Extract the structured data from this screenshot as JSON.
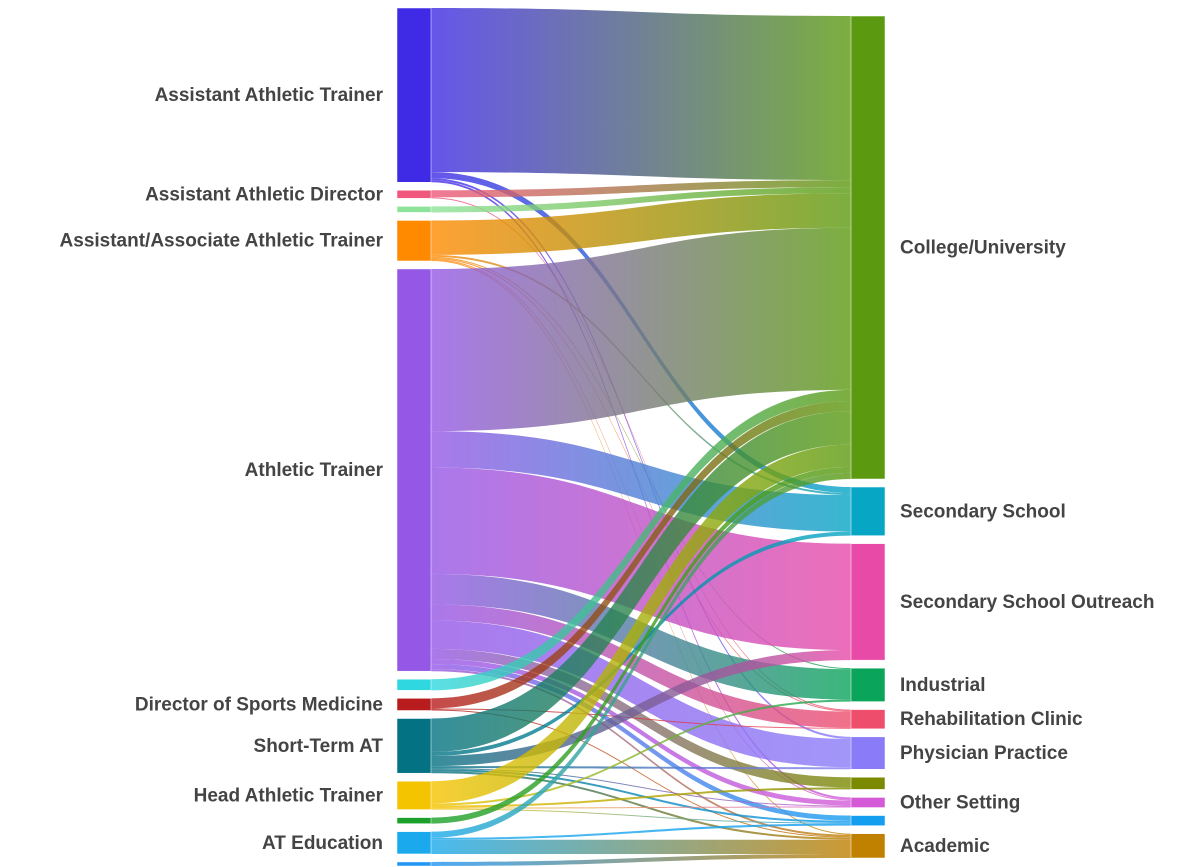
{
  "chart_data": {
    "type": "sankey",
    "nodes": [
      {
        "label": "Assistant Athletic Trainer",
        "color": "#3f2be6"
      },
      {
        "label": "Assistant Athletic Director",
        "color": "#f0577c"
      },
      {
        "label": null,
        "color": "#8ee39a"
      },
      {
        "label": "Assistant/Associate Athletic Trainer",
        "color": "#ff8a00"
      },
      {
        "label": "Athletic Trainer",
        "color": "#9557e6"
      },
      {
        "label": null,
        "color": "#2fd8e0"
      },
      {
        "label": "Director of Sports Medicine",
        "color": "#b81c1c"
      },
      {
        "label": "Short-Term AT",
        "color": "#037282"
      },
      {
        "label": "Head Athletic Trainer",
        "color": "#f5c400"
      },
      {
        "label": null,
        "color": "#1ba02a"
      },
      {
        "label": "AT Education",
        "color": "#1aa9ec"
      },
      {
        "label": null,
        "color": "#2196f3"
      },
      {
        "label": "College/University",
        "color": "#5b9a10"
      },
      {
        "label": "Secondary School",
        "color": "#06a6c4"
      },
      {
        "label": "Secondary School Outreach",
        "color": "#e84aa8"
      },
      {
        "label": "Industrial",
        "color": "#0aa55a"
      },
      {
        "label": "Rehabilitation Clinic",
        "color": "#ee4d6c"
      },
      {
        "label": "Physician Practice",
        "color": "#8a7cf8"
      },
      {
        "label": null,
        "color": "#7b8a00"
      },
      {
        "label": "Other Setting",
        "color": "#d45ad8"
      },
      {
        "label": null,
        "color": "#149ef0"
      },
      {
        "label": "Academic",
        "color": "#c08000"
      }
    ],
    "links": [
      {
        "source": 0,
        "target": 12,
        "value": 162
      },
      {
        "source": 0,
        "target": 13,
        "value": 6
      },
      {
        "source": 0,
        "target": 17,
        "value": 2
      },
      {
        "source": 0,
        "target": 19,
        "value": 2
      },
      {
        "source": 1,
        "target": 12,
        "value": 7
      },
      {
        "source": 1,
        "target": 16,
        "value": 1
      },
      {
        "source": 2,
        "target": 12,
        "value": 6
      },
      {
        "source": 3,
        "target": 12,
        "value": 34
      },
      {
        "source": 3,
        "target": 13,
        "value": 2
      },
      {
        "source": 3,
        "target": 15,
        "value": 1
      },
      {
        "source": 3,
        "target": 16,
        "value": 1
      },
      {
        "source": 3,
        "target": 19,
        "value": 1
      },
      {
        "source": 3,
        "target": 21,
        "value": 1
      },
      {
        "source": 4,
        "target": 12,
        "value": 160
      },
      {
        "source": 4,
        "target": 13,
        "value": 36
      },
      {
        "source": 4,
        "target": 14,
        "value": 105
      },
      {
        "source": 4,
        "target": 15,
        "value": 30
      },
      {
        "source": 4,
        "target": 16,
        "value": 16
      },
      {
        "source": 4,
        "target": 17,
        "value": 28
      },
      {
        "source": 4,
        "target": 18,
        "value": 10
      },
      {
        "source": 4,
        "target": 19,
        "value": 5
      },
      {
        "source": 4,
        "target": 20,
        "value": 5
      },
      {
        "source": 4,
        "target": 21,
        "value": 2
      },
      {
        "source": 5,
        "target": 12,
        "value": 11
      },
      {
        "source": 6,
        "target": 12,
        "value": 10
      },
      {
        "source": 6,
        "target": 16,
        "value": 1
      },
      {
        "source": 6,
        "target": 21,
        "value": 1
      },
      {
        "source": 7,
        "target": 12,
        "value": 33
      },
      {
        "source": 7,
        "target": 13,
        "value": 4
      },
      {
        "source": 7,
        "target": 14,
        "value": 10
      },
      {
        "source": 7,
        "target": 17,
        "value": 2
      },
      {
        "source": 7,
        "target": 19,
        "value": 1
      },
      {
        "source": 7,
        "target": 20,
        "value": 2
      },
      {
        "source": 7,
        "target": 21,
        "value": 2
      },
      {
        "source": 8,
        "target": 12,
        "value": 22
      },
      {
        "source": 8,
        "target": 15,
        "value": 2
      },
      {
        "source": 8,
        "target": 18,
        "value": 2
      },
      {
        "source": 8,
        "target": 19,
        "value": 1
      },
      {
        "source": 8,
        "target": 20,
        "value": 1
      },
      {
        "source": 9,
        "target": 12,
        "value": 6
      },
      {
        "source": 10,
        "target": 12,
        "value": 6
      },
      {
        "source": 10,
        "target": 20,
        "value": 2
      },
      {
        "source": 10,
        "target": 21,
        "value": 14
      },
      {
        "source": 11,
        "target": 21,
        "value": 4
      }
    ]
  }
}
